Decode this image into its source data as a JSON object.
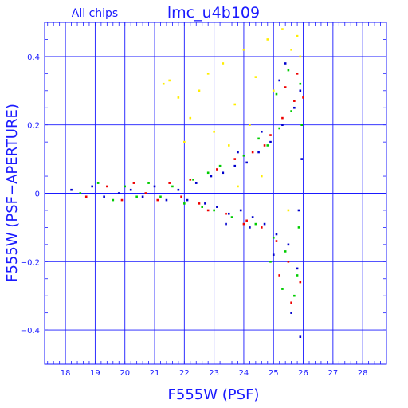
{
  "chart_data": {
    "type": "scatter",
    "title": "lmc_u4b109",
    "subtitle": "All chips",
    "xlabel": "F555W (PSF)",
    "ylabel": "F555W (PSF−APERTURE)",
    "xlim": [
      17.3,
      28.8
    ],
    "ylim": [
      -0.5,
      0.5
    ],
    "x_ticks": [
      18,
      19,
      20,
      21,
      22,
      23,
      24,
      25,
      26,
      27,
      28
    ],
    "y_ticks": [
      0.4,
      0.2,
      0,
      -0.2,
      -0.4
    ],
    "x_tick_labels": [
      "18",
      "19",
      "20",
      "21",
      "22",
      "23",
      "24",
      "25",
      "26",
      "27",
      "28"
    ],
    "y_tick_labels": [
      "0.4",
      "0.2",
      "0",
      "−0.2",
      "−0.4"
    ],
    "grid": true,
    "colors": {
      "axes": "#1a1aff",
      "chip1": "#0000cc",
      "chip2": "#00cc00",
      "chip3": "#ee0000",
      "chip4": "#ffee00"
    },
    "series": [
      {
        "color": "#0000cc",
        "points": [
          [
            18.2,
            0.01
          ],
          [
            18.9,
            0.02
          ],
          [
            19.3,
            -0.01
          ],
          [
            19.8,
            0.0
          ],
          [
            20.2,
            0.01
          ],
          [
            20.6,
            -0.01
          ],
          [
            21.0,
            0.02
          ],
          [
            21.4,
            -0.02
          ],
          [
            21.8,
            0.01
          ],
          [
            22.1,
            -0.02
          ],
          [
            22.4,
            0.03
          ],
          [
            22.7,
            -0.03
          ],
          [
            22.9,
            0.05
          ],
          [
            23.1,
            -0.04
          ],
          [
            23.3,
            0.06
          ],
          [
            23.5,
            -0.06
          ],
          [
            23.7,
            0.08
          ],
          [
            23.9,
            -0.05
          ],
          [
            24.1,
            0.09
          ],
          [
            24.3,
            -0.07
          ],
          [
            24.5,
            0.12
          ],
          [
            24.7,
            -0.09
          ],
          [
            24.9,
            0.15
          ],
          [
            25.1,
            -0.12
          ],
          [
            25.3,
            0.2
          ],
          [
            25.5,
            -0.15
          ],
          [
            25.7,
            0.25
          ],
          [
            25.8,
            -0.22
          ],
          [
            25.9,
            0.3
          ],
          [
            25.6,
            -0.35
          ],
          [
            25.4,
            0.38
          ],
          [
            25.9,
            -0.42
          ],
          [
            25.2,
            0.33
          ],
          [
            25.0,
            -0.18
          ],
          [
            24.6,
            0.18
          ],
          [
            24.2,
            -0.1
          ],
          [
            23.8,
            0.12
          ],
          [
            23.4,
            -0.09
          ],
          [
            25.95,
            0.1
          ],
          [
            25.85,
            -0.05
          ]
        ]
      },
      {
        "color": "#00cc00",
        "points": [
          [
            18.5,
            0.0
          ],
          [
            19.1,
            0.03
          ],
          [
            19.6,
            -0.02
          ],
          [
            20.0,
            0.02
          ],
          [
            20.4,
            -0.01
          ],
          [
            20.8,
            0.03
          ],
          [
            21.2,
            -0.01
          ],
          [
            21.6,
            0.02
          ],
          [
            22.0,
            -0.03
          ],
          [
            22.3,
            0.04
          ],
          [
            22.6,
            -0.04
          ],
          [
            22.8,
            0.06
          ],
          [
            23.0,
            -0.05
          ],
          [
            23.2,
            0.08
          ],
          [
            23.6,
            -0.07
          ],
          [
            24.0,
            0.11
          ],
          [
            24.4,
            -0.09
          ],
          [
            24.8,
            0.14
          ],
          [
            25.0,
            -0.13
          ],
          [
            25.2,
            0.19
          ],
          [
            25.4,
            -0.17
          ],
          [
            25.6,
            0.24
          ],
          [
            25.8,
            -0.24
          ],
          [
            25.9,
            0.32
          ],
          [
            25.7,
            -0.3
          ],
          [
            25.5,
            0.36
          ],
          [
            25.3,
            -0.28
          ],
          [
            25.1,
            0.29
          ],
          [
            24.9,
            -0.2
          ],
          [
            24.5,
            0.16
          ],
          [
            25.95,
            0.2
          ],
          [
            25.85,
            -0.1
          ]
        ]
      },
      {
        "color": "#ee0000",
        "points": [
          [
            18.7,
            -0.01
          ],
          [
            19.4,
            0.02
          ],
          [
            19.9,
            -0.02
          ],
          [
            20.3,
            0.03
          ],
          [
            20.7,
            0.0
          ],
          [
            21.1,
            -0.02
          ],
          [
            21.5,
            0.03
          ],
          [
            21.9,
            -0.01
          ],
          [
            22.2,
            0.04
          ],
          [
            22.5,
            -0.03
          ],
          [
            22.8,
            -0.05
          ],
          [
            23.1,
            0.07
          ],
          [
            23.4,
            -0.06
          ],
          [
            23.7,
            0.1
          ],
          [
            24.0,
            -0.09
          ],
          [
            24.3,
            0.12
          ],
          [
            24.6,
            -0.1
          ],
          [
            24.9,
            0.17
          ],
          [
            25.1,
            -0.14
          ],
          [
            25.3,
            0.22
          ],
          [
            25.5,
            -0.2
          ],
          [
            25.7,
            0.27
          ],
          [
            25.9,
            -0.26
          ],
          [
            26.0,
            0.28
          ],
          [
            25.8,
            0.35
          ],
          [
            25.6,
            -0.32
          ],
          [
            25.4,
            0.31
          ],
          [
            25.2,
            -0.24
          ],
          [
            24.7,
            0.14
          ],
          [
            24.1,
            -0.08
          ]
        ]
      },
      {
        "color": "#ffee00",
        "points": [
          [
            21.3,
            0.32
          ],
          [
            21.5,
            0.33
          ],
          [
            21.8,
            0.28
          ],
          [
            22.2,
            0.22
          ],
          [
            22.5,
            0.3
          ],
          [
            22.8,
            0.35
          ],
          [
            23.0,
            0.18
          ],
          [
            23.3,
            0.38
          ],
          [
            23.7,
            0.26
          ],
          [
            24.0,
            0.42
          ],
          [
            24.4,
            0.34
          ],
          [
            24.8,
            0.45
          ],
          [
            25.0,
            0.3
          ],
          [
            25.3,
            0.48
          ],
          [
            25.6,
            0.42
          ],
          [
            25.8,
            0.46
          ],
          [
            25.9,
            0.4
          ],
          [
            24.2,
            0.2
          ],
          [
            23.5,
            0.14
          ],
          [
            22.0,
            0.15
          ],
          [
            25.5,
            -0.05
          ],
          [
            24.6,
            0.05
          ],
          [
            23.8,
            0.02
          ]
        ]
      }
    ]
  }
}
